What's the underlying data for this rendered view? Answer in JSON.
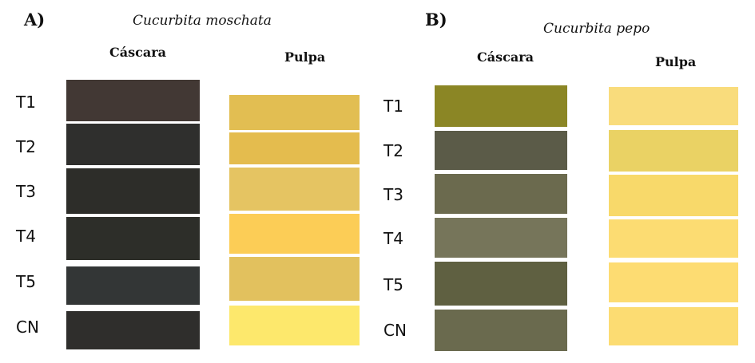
{
  "panel_a": {
    "label": "A)",
    "species": "Cucurbita moschata",
    "col_cascara": "Cáscara",
    "col_pulpa": "Pulpa",
    "rows": [
      {
        "label": "T1",
        "cascara": "#423834",
        "pulpa": "#e2be52"
      },
      {
        "label": "T2",
        "cascara": "#2f2f2d",
        "pulpa": "#e4bc4e"
      },
      {
        "label": "T3",
        "cascara": "#2d2d29",
        "pulpa": "#e5c462"
      },
      {
        "label": "T4",
        "cascara": "#2d2e29",
        "pulpa": "#fccd56"
      },
      {
        "label": "T5",
        "cascara": "#333636",
        "pulpa": "#e2c15e"
      },
      {
        "label": "CN",
        "cascara": "#2f2e2c",
        "pulpa": "#fde86c"
      }
    ]
  },
  "panel_b": {
    "label": "B)",
    "species": "Cucurbita pepo",
    "col_cascara": "Cáscara",
    "col_pulpa": "Pulpa",
    "rows": [
      {
        "label": "T1",
        "cascara": "#8b8625",
        "pulpa": "#f9dc7c"
      },
      {
        "label": "T2",
        "cascara": "#5b5b48",
        "pulpa": "#ead264"
      },
      {
        "label": "T3",
        "cascara": "#6b6a4e",
        "pulpa": "#f8d96a"
      },
      {
        "label": "T4",
        "cascara": "#76755a",
        "pulpa": "#fcdc72"
      },
      {
        "label": "T5",
        "cascara": "#5f6041",
        "pulpa": "#fddc72"
      },
      {
        "label": "CN",
        "cascara": "#6a6a4e",
        "pulpa": "#fcdc72"
      }
    ]
  }
}
